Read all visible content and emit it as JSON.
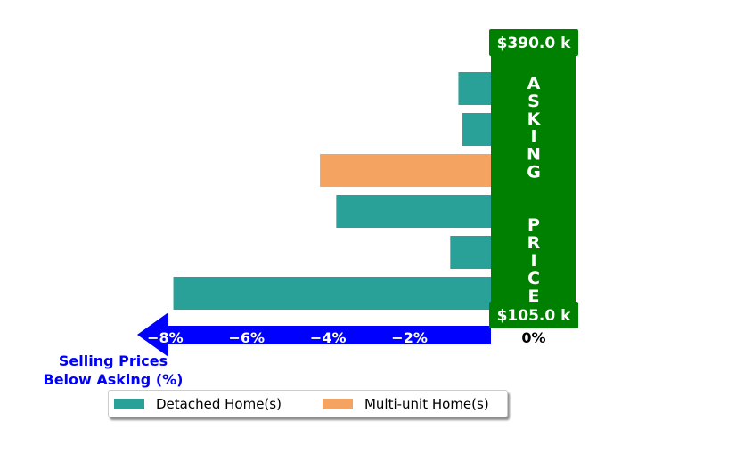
{
  "chart_data": {
    "type": "bar",
    "orientation": "horizontal",
    "title": "",
    "categories": [
      "",
      "",
      "",
      "",
      "",
      ""
    ],
    "series": [
      {
        "name": "Detached Home(s)",
        "color": "#2aa198",
        "values": [
          -0.8,
          -0.7,
          null,
          -3.8,
          -1.0,
          -7.8
        ]
      },
      {
        "name": "Multi-unit Home(s)",
        "color": "#f4a460",
        "values": [
          null,
          null,
          -4.2,
          null,
          null,
          null
        ]
      }
    ],
    "bar_order": "top-to-bottom",
    "xlim": [
      -9.2,
      0
    ],
    "xticks": [
      -8,
      -6,
      -4,
      -2,
      0
    ],
    "xtick_labels": [
      "−8%",
      "−6%",
      "−4%",
      "−2%",
      "0%"
    ],
    "xlabel": "Selling Prices\nBelow Asking (%)",
    "xlabel_color": "#0000ff",
    "arrow_color": "#0000ff",
    "asking_price_panel": {
      "label": "ASKING  PRICE",
      "color": "#008000",
      "top_value": "$390.0 k",
      "bottom_value": "$105.0 k"
    },
    "legend": {
      "position": "bottom-center",
      "shadow": true
    },
    "grid": false
  }
}
